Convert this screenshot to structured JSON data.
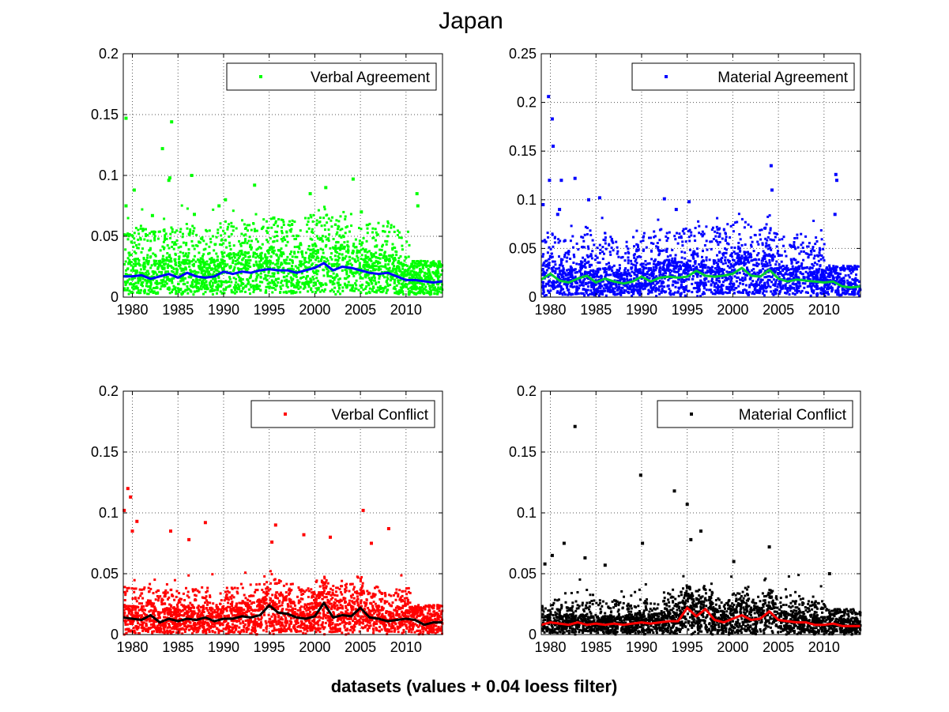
{
  "figure": {
    "title": "Japan",
    "xlabel": "datasets (values + 0.04 loess filter)"
  },
  "chart_data": [
    {
      "type": "scatter",
      "legend": "Verbal Agreement",
      "legend_position": "top-right",
      "grid": true,
      "xlim": [
        1979,
        2014
      ],
      "ylim": [
        0,
        0.2
      ],
      "xticks": [
        "1980",
        "1985",
        "1990",
        "1995",
        "2000",
        "2005",
        "2010"
      ],
      "yticks": [
        "0",
        "0.05",
        "0.1",
        "0.15",
        "0.2"
      ],
      "point_color": "#00ff00",
      "line_color": "#0000ff",
      "scatter_band": {
        "low": 0.002,
        "high": 0.045
      },
      "smooth": {
        "x": [
          1979,
          1980,
          1981,
          1982,
          1983,
          1984,
          1985,
          1986,
          1987,
          1988,
          1989,
          1990,
          1991,
          1992,
          1993,
          1994,
          1995,
          1996,
          1997,
          1998,
          1999,
          2000,
          2001,
          2002,
          2003,
          2004,
          2005,
          2006,
          2007,
          2008,
          2009,
          2010,
          2011,
          2012,
          2013,
          2014
        ],
        "y": [
          0.017,
          0.017,
          0.018,
          0.015,
          0.017,
          0.019,
          0.016,
          0.02,
          0.017,
          0.016,
          0.017,
          0.021,
          0.019,
          0.021,
          0.02,
          0.022,
          0.023,
          0.022,
          0.022,
          0.02,
          0.022,
          0.024,
          0.028,
          0.022,
          0.025,
          0.024,
          0.022,
          0.02,
          0.019,
          0.02,
          0.017,
          0.014,
          0.014,
          0.013,
          0.012,
          0.013
        ]
      },
      "outliers": [
        {
          "x": 1979.3,
          "y": 0.147
        },
        {
          "x": 1983.3,
          "y": 0.122
        },
        {
          "x": 1984.3,
          "y": 0.144
        },
        {
          "x": 1984.1,
          "y": 0.098
        },
        {
          "x": 1986.5,
          "y": 0.1
        },
        {
          "x": 1980.2,
          "y": 0.088
        },
        {
          "x": 1984.0,
          "y": 0.096
        },
        {
          "x": 1990.2,
          "y": 0.08
        },
        {
          "x": 1993.4,
          "y": 0.092
        },
        {
          "x": 1999.5,
          "y": 0.085
        },
        {
          "x": 2001.2,
          "y": 0.09
        },
        {
          "x": 2004.2,
          "y": 0.097
        },
        {
          "x": 2005.1,
          "y": 0.07
        },
        {
          "x": 2011.2,
          "y": 0.085
        },
        {
          "x": 2011.3,
          "y": 0.075
        },
        {
          "x": 1989.5,
          "y": 0.075
        },
        {
          "x": 1995.5,
          "y": 0.065
        },
        {
          "x": 1979.3,
          "y": 0.075
        },
        {
          "x": 1982.2,
          "y": 0.067
        },
        {
          "x": 1986.8,
          "y": 0.068
        }
      ]
    },
    {
      "type": "scatter",
      "legend": "Material Agreement",
      "legend_position": "top-right",
      "grid": true,
      "xlim": [
        1979,
        2014
      ],
      "ylim": [
        0,
        0.25
      ],
      "xticks": [
        "1980",
        "1985",
        "1990",
        "1995",
        "2000",
        "2005",
        "2010"
      ],
      "yticks": [
        "0",
        "0.05",
        "0.1",
        "0.15",
        "0.2",
        "0.25"
      ],
      "point_color": "#0000ff",
      "line_color": "#00cc33",
      "scatter_band": {
        "low": 0.001,
        "high": 0.05
      },
      "smooth": {
        "x": [
          1979,
          1980,
          1981,
          1982,
          1983,
          1984,
          1985,
          1986,
          1987,
          1988,
          1989,
          1990,
          1991,
          1992,
          1993,
          1994,
          1995,
          1996,
          1997,
          1998,
          1999,
          2000,
          2001,
          2002,
          2003,
          2004,
          2005,
          2006,
          2007,
          2008,
          2009,
          2010,
          2011,
          2012,
          2013,
          2014
        ],
        "y": [
          0.018,
          0.024,
          0.017,
          0.015,
          0.019,
          0.022,
          0.015,
          0.019,
          0.016,
          0.014,
          0.016,
          0.021,
          0.016,
          0.02,
          0.021,
          0.02,
          0.021,
          0.027,
          0.022,
          0.021,
          0.022,
          0.024,
          0.03,
          0.022,
          0.021,
          0.028,
          0.019,
          0.016,
          0.018,
          0.017,
          0.016,
          0.015,
          0.016,
          0.011,
          0.01,
          0.011
        ]
      },
      "outliers": [
        {
          "x": 1979.8,
          "y": 0.206
        },
        {
          "x": 1980.2,
          "y": 0.183
        },
        {
          "x": 1980.3,
          "y": 0.155
        },
        {
          "x": 1979.9,
          "y": 0.12
        },
        {
          "x": 1981.2,
          "y": 0.12
        },
        {
          "x": 1982.7,
          "y": 0.122
        },
        {
          "x": 1984.2,
          "y": 0.1
        },
        {
          "x": 1985.4,
          "y": 0.102
        },
        {
          "x": 2004.2,
          "y": 0.135
        },
        {
          "x": 2004.3,
          "y": 0.11
        },
        {
          "x": 2011.3,
          "y": 0.126
        },
        {
          "x": 2011.4,
          "y": 0.12
        },
        {
          "x": 2011.2,
          "y": 0.085
        },
        {
          "x": 1992.5,
          "y": 0.101
        },
        {
          "x": 1995.2,
          "y": 0.098
        },
        {
          "x": 1979.2,
          "y": 0.095
        },
        {
          "x": 1981.0,
          "y": 0.09
        },
        {
          "x": 1993.8,
          "y": 0.09
        },
        {
          "x": 1980.8,
          "y": 0.085
        }
      ]
    },
    {
      "type": "scatter",
      "legend": "Verbal Conflict",
      "legend_position": "top-right",
      "grid": true,
      "xlim": [
        1979,
        2014
      ],
      "ylim": [
        0,
        0.2
      ],
      "xticks": [
        "1980",
        "1985",
        "1990",
        "1995",
        "2000",
        "2005",
        "2010"
      ],
      "yticks": [
        "0",
        "0.05",
        "0.1",
        "0.15",
        "0.2"
      ],
      "point_color": "#ff0000",
      "line_color": "#000000",
      "scatter_band": {
        "low": 0.0,
        "high": 0.035
      },
      "smooth": {
        "x": [
          1979,
          1980,
          1981,
          1982,
          1983,
          1984,
          1985,
          1986,
          1987,
          1988,
          1989,
          1990,
          1991,
          1992,
          1993,
          1994,
          1995,
          1996,
          1997,
          1998,
          1999,
          2000,
          2001,
          2002,
          2003,
          2004,
          2005,
          2006,
          2007,
          2008,
          2009,
          2010,
          2011,
          2012,
          2013,
          2014
        ],
        "y": [
          0.014,
          0.013,
          0.012,
          0.016,
          0.01,
          0.013,
          0.011,
          0.013,
          0.012,
          0.014,
          0.011,
          0.013,
          0.013,
          0.015,
          0.014,
          0.016,
          0.024,
          0.018,
          0.017,
          0.014,
          0.013,
          0.015,
          0.026,
          0.014,
          0.016,
          0.015,
          0.022,
          0.014,
          0.013,
          0.011,
          0.012,
          0.013,
          0.012,
          0.008,
          0.01,
          0.01
        ]
      },
      "outliers": [
        {
          "x": 1979.5,
          "y": 0.12
        },
        {
          "x": 1979.1,
          "y": 0.102
        },
        {
          "x": 1979.8,
          "y": 0.113
        },
        {
          "x": 1980.5,
          "y": 0.093
        },
        {
          "x": 1980.0,
          "y": 0.085
        },
        {
          "x": 1988.0,
          "y": 0.092
        },
        {
          "x": 1995.7,
          "y": 0.09
        },
        {
          "x": 1998.8,
          "y": 0.082
        },
        {
          "x": 2001.7,
          "y": 0.08
        },
        {
          "x": 2005.3,
          "y": 0.102
        },
        {
          "x": 2008.1,
          "y": 0.087
        },
        {
          "x": 1984.2,
          "y": 0.085
        },
        {
          "x": 1986.2,
          "y": 0.078
        },
        {
          "x": 1995.3,
          "y": 0.076
        },
        {
          "x": 2006.2,
          "y": 0.075
        }
      ]
    },
    {
      "type": "scatter",
      "legend": "Material Conflict",
      "legend_position": "top-right",
      "grid": true,
      "xlim": [
        1979,
        2014
      ],
      "ylim": [
        0,
        0.2
      ],
      "xticks": [
        "1980",
        "1985",
        "1990",
        "1995",
        "2000",
        "2005",
        "2010"
      ],
      "yticks": [
        "0",
        "0.05",
        "0.1",
        "0.15",
        "0.2"
      ],
      "point_color": "#000000",
      "line_color": "#ff0000",
      "scatter_band": {
        "low": 0.0,
        "high": 0.03
      },
      "smooth": {
        "x": [
          1979,
          1980,
          1981,
          1982,
          1983,
          1984,
          1985,
          1986,
          1987,
          1988,
          1989,
          1990,
          1991,
          1992,
          1993,
          1994,
          1995,
          1996,
          1997,
          1998,
          1999,
          2000,
          2001,
          2002,
          2003,
          2004,
          2005,
          2006,
          2007,
          2008,
          2009,
          2010,
          2011,
          2012,
          2013,
          2014
        ],
        "y": [
          0.008,
          0.01,
          0.009,
          0.008,
          0.01,
          0.008,
          0.009,
          0.008,
          0.009,
          0.008,
          0.009,
          0.01,
          0.009,
          0.01,
          0.011,
          0.011,
          0.022,
          0.015,
          0.021,
          0.012,
          0.01,
          0.013,
          0.016,
          0.012,
          0.013,
          0.019,
          0.012,
          0.011,
          0.01,
          0.01,
          0.008,
          0.008,
          0.009,
          0.007,
          0.007,
          0.007
        ]
      },
      "outliers": [
        {
          "x": 1982.7,
          "y": 0.171
        },
        {
          "x": 1989.9,
          "y": 0.131
        },
        {
          "x": 1993.6,
          "y": 0.118
        },
        {
          "x": 1995.0,
          "y": 0.107
        },
        {
          "x": 1990.1,
          "y": 0.075
        },
        {
          "x": 1996.5,
          "y": 0.085
        },
        {
          "x": 1980.2,
          "y": 0.065
        },
        {
          "x": 1981.5,
          "y": 0.075
        },
        {
          "x": 2004.0,
          "y": 0.072
        },
        {
          "x": 1983.8,
          "y": 0.063
        },
        {
          "x": 2010.6,
          "y": 0.05
        },
        {
          "x": 1995.4,
          "y": 0.078
        },
        {
          "x": 1986.0,
          "y": 0.057
        },
        {
          "x": 2000.1,
          "y": 0.06
        },
        {
          "x": 1979.4,
          "y": 0.058
        }
      ]
    }
  ]
}
